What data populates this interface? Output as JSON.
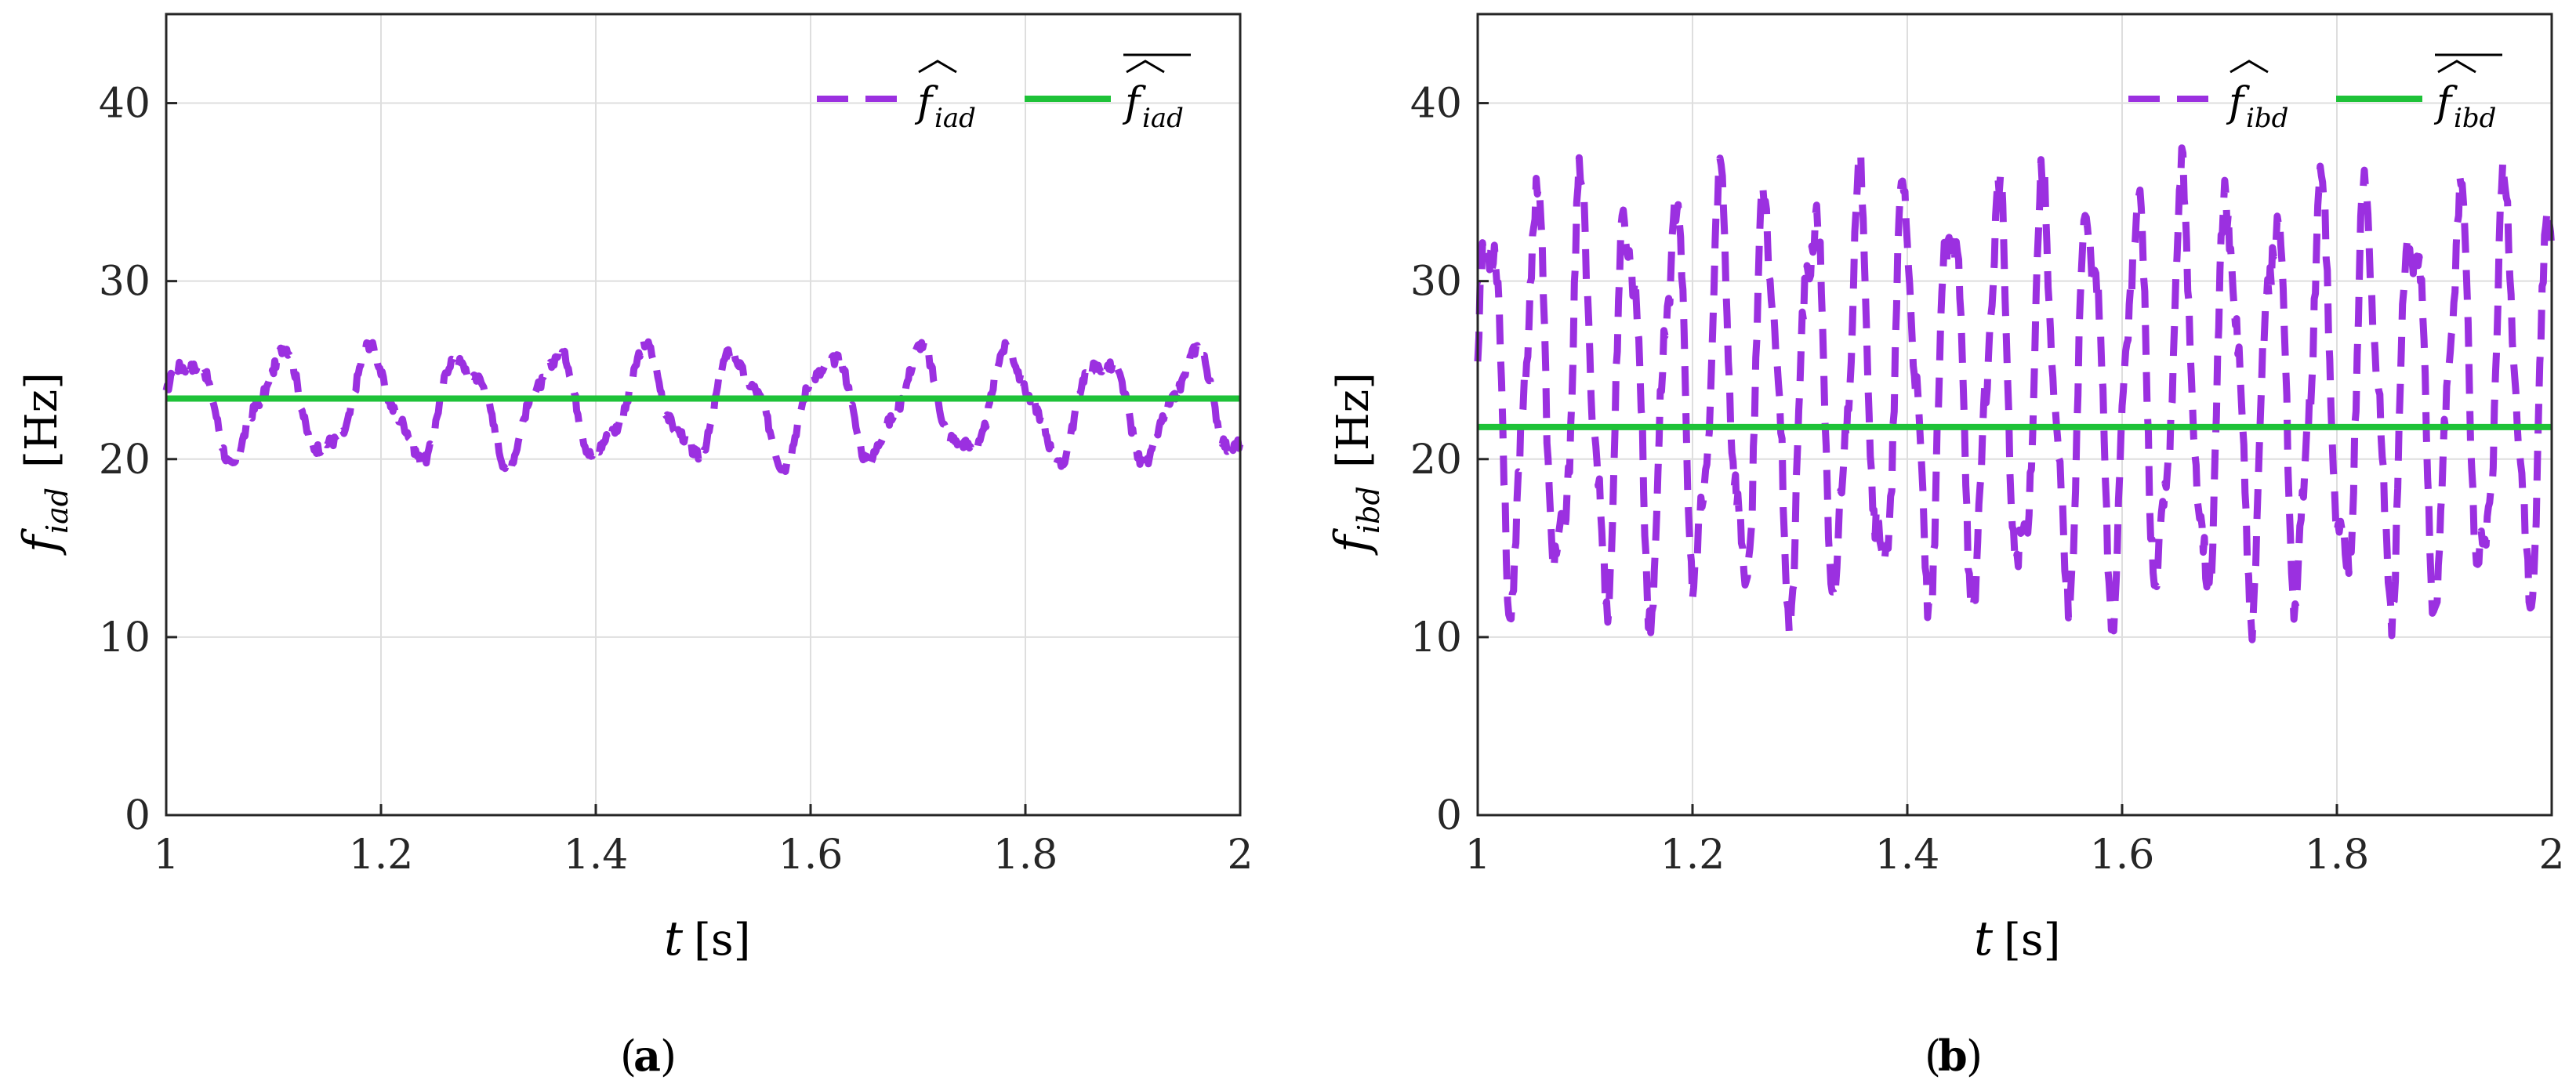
{
  "colors": {
    "estimate": "#9b30e0",
    "mean": "#1ec238",
    "grid": "#dedede",
    "axis": "#262626"
  },
  "chart_data": [
    {
      "id": "a",
      "type": "line",
      "caption": "a",
      "xlabel": {
        "var": "t",
        "unit": "[s]"
      },
      "ylabel": {
        "var": "f",
        "sub": "iad",
        "unit": "[Hz]"
      },
      "xlim": [
        1,
        2
      ],
      "ylim": [
        0,
        45
      ],
      "xticks": [
        "1",
        "1.2",
        "1.4",
        "1.6",
        "1.8",
        "2"
      ],
      "yticks": [
        "0",
        "10",
        "20",
        "30",
        "40"
      ],
      "legend": {
        "position": "top-right",
        "entries": [
          {
            "base": "f",
            "sub": "iad",
            "style": "dashed",
            "decoration": "hat"
          },
          {
            "base": "f",
            "sub": "iad",
            "style": "solid",
            "decoration": "hat-bar"
          }
        ]
      },
      "series": [
        {
          "name": "estimate",
          "style": "dashed",
          "color": "#9b30e0",
          "center": 23.0,
          "amplitude": 2.8,
          "period": 0.085,
          "jitter": 0.6,
          "x0": 1.0
        },
        {
          "name": "mean",
          "style": "solid",
          "color": "#1ec238",
          "value": 23.4
        }
      ]
    },
    {
      "id": "b",
      "type": "line",
      "caption": "b",
      "xlabel": {
        "var": "t",
        "unit": "[s]"
      },
      "ylabel": {
        "var": "f",
        "sub": "ibd",
        "unit": "[Hz]"
      },
      "xlim": [
        1,
        2
      ],
      "ylim": [
        0,
        45
      ],
      "xticks": [
        "1",
        "1.2",
        "1.4",
        "1.6",
        "1.8",
        "2"
      ],
      "yticks": [
        "0",
        "10",
        "20",
        "30",
        "40"
      ],
      "legend": {
        "position": "top-right",
        "entries": [
          {
            "base": "f",
            "sub": "ibd",
            "style": "dashed",
            "decoration": "hat"
          },
          {
            "base": "f",
            "sub": "ibd",
            "style": "solid",
            "decoration": "hat-bar"
          }
        ]
      },
      "series": [
        {
          "name": "estimate",
          "style": "dashed",
          "color": "#9b30e0",
          "center": 23.5,
          "amplitude": 10.5,
          "period": 0.043,
          "jitter": 2.0,
          "x0": 1.0
        },
        {
          "name": "mean",
          "style": "solid",
          "color": "#1ec238",
          "value": 21.8
        }
      ]
    }
  ]
}
